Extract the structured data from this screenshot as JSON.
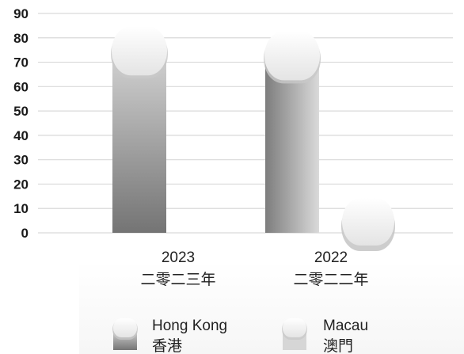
{
  "chart_data": {
    "type": "bar",
    "title": "",
    "xlabel": "",
    "ylabel": "",
    "ylim": [
      0,
      90
    ],
    "yticks": [
      0,
      10,
      20,
      30,
      40,
      50,
      60,
      70,
      80,
      90
    ],
    "grid": true,
    "categories": [
      {
        "line1": "2023",
        "line2": "二零二三年"
      },
      {
        "line1": "2022",
        "line2": "二零二二年"
      }
    ],
    "series": [
      {
        "name": "Hong Kong",
        "name_zh": "香港",
        "color_top": "#bcbcbc",
        "color_bottom": "#7a7a7a",
        "values": [
          74,
          72
        ]
      },
      {
        "name": "Macau",
        "name_zh": "澳門",
        "color_top": "#e8e8e8",
        "color_bottom": "#c4c4c4",
        "values": [
          0,
          0
        ]
      }
    ],
    "legend_position": "bottom"
  }
}
